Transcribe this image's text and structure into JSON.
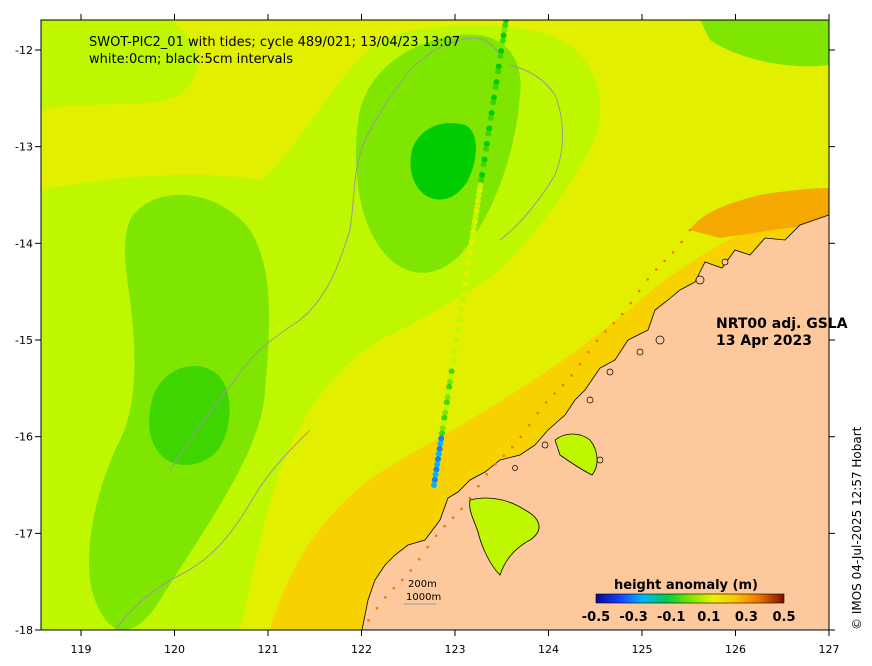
{
  "title": {
    "line1": "SWOT-PIC2_01 with tides; cycle 489/021; 13/04/23 13:07",
    "line2": "white:0cm; black:5cm intervals"
  },
  "product": {
    "name": "NRT00 adj. GSLA",
    "date": "13 Apr 2023"
  },
  "axes": {
    "x_ticks": [
      "119",
      "120",
      "121",
      "122",
      "123",
      "124",
      "125",
      "126",
      "127"
    ],
    "y_ticks": [
      "-12",
      "-13",
      "-14",
      "-15",
      "-16",
      "-17",
      "-18"
    ]
  },
  "colorbar": {
    "title": "height anomaly (m)",
    "ticks": [
      "-0.5",
      "-0.3",
      "-0.1",
      "0.1",
      "0.3",
      "0.5"
    ]
  },
  "scale": {
    "label1": "200m",
    "label2": "1000m"
  },
  "credit": "© IMOS 04-Jul-2025 12:57 Hobart",
  "colors": {
    "land": "#fdc89b",
    "yellow": "#e2f000",
    "yellow_green": "#bff700",
    "green": "#7ee600",
    "deep_green": "#3fd500",
    "core_green": "#00cc00",
    "gold": "#f8d200",
    "orange": "#f5a800"
  }
}
